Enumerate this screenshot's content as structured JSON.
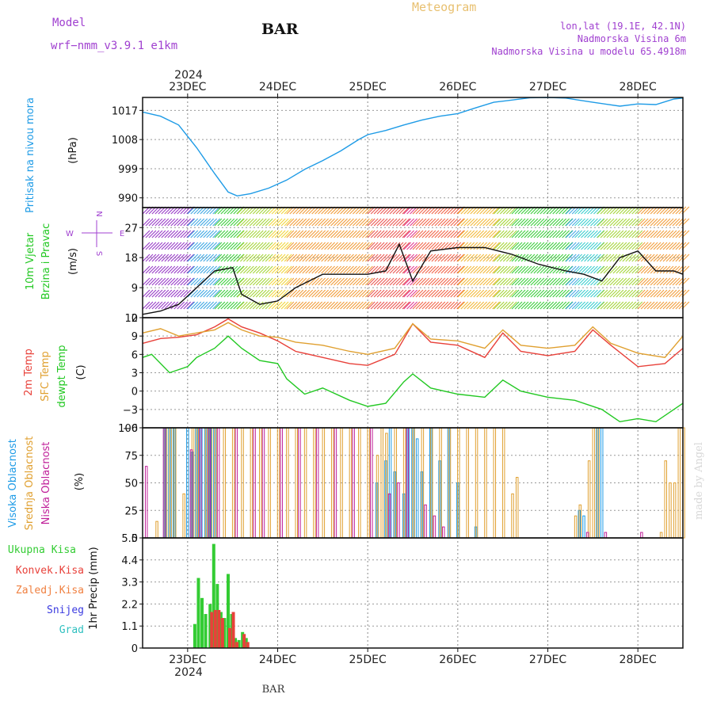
{
  "header": {
    "title": "BAR",
    "model_label": "Model",
    "model_name": "wrf−nmm_v3.9.1  e1km",
    "meteogram": "Meteogram",
    "lonlat": "lon,lat (19.1E, 42.1N)",
    "elevation": "Nadmorska Visina 6m",
    "model_elevation": "Nadmorska Visina u modelu 65.4918m",
    "footer": "BAR",
    "credit": "made by Angel",
    "year": "2024"
  },
  "time_axis": {
    "ticks": [
      "23DEC",
      "24DEC",
      "25DEC",
      "26DEC",
      "27DEC",
      "28DEC"
    ],
    "range_days": [
      22.5,
      28.5
    ]
  },
  "colors": {
    "pressure": "#1e9be6",
    "temp2m": "#e8413a",
    "sfc_temp": "#e0a030",
    "dewpt": "#22c822",
    "high_cloud": "#1e9be6",
    "mid_cloud": "#e0a030",
    "low_cloud": "#c0209a",
    "total_precip": "#33cc33",
    "conv_precip": "#e8413a",
    "frz_precip": "#f08040",
    "snow": "#3a3ae0",
    "graupel": "#30c0c0",
    "header_purple": "#a040d0",
    "meteogram_gold": "#e8c070"
  },
  "chart_data": [
    {
      "type": "line",
      "panel": "pressure",
      "ylabel_main": "Pritisak na nivou mora",
      "unit": "(hPa)",
      "yticks": [
        "1017",
        "1008",
        "999",
        "990"
      ],
      "ylim": [
        987,
        1021
      ],
      "series": [
        {
          "key": "pressure",
          "x": [
            22.5,
            22.7,
            22.9,
            23.1,
            23.3,
            23.45,
            23.55,
            23.7,
            23.9,
            24.1,
            24.3,
            24.5,
            24.7,
            24.9,
            25.0,
            25.2,
            25.4,
            25.6,
            25.8,
            26.0,
            26.2,
            26.4,
            26.6,
            26.8,
            27.0,
            27.2,
            27.5,
            27.8,
            28.0,
            28.2,
            28.4,
            28.5
          ],
          "values": [
            1016.5,
            1015.2,
            1012.5,
            1005.5,
            997.5,
            991.8,
            990.6,
            991.3,
            993.0,
            995.5,
            998.8,
            1001.5,
            1004.5,
            1008.0,
            1009.5,
            1010.8,
            1012.5,
            1014.0,
            1015.2,
            1016.0,
            1017.8,
            1019.5,
            1020.2,
            1020.9,
            1021.0,
            1020.8,
            1019.5,
            1018.3,
            1019.0,
            1018.8,
            1020.5,
            1020.8
          ]
        }
      ]
    },
    {
      "type": "line",
      "panel": "wind",
      "ylabel_main": "10m Vjetar",
      "ylabel_sub": "Brzina i Pravac",
      "unit": "(m/s)",
      "yticks": [
        "27",
        "18",
        "9",
        "0"
      ],
      "ylim": [
        0,
        33
      ],
      "compass": [
        "N",
        "W",
        "E",
        "S"
      ],
      "series": [
        {
          "key": "wind_speed",
          "x": [
            22.5,
            22.7,
            22.9,
            23.1,
            23.3,
            23.5,
            23.6,
            23.8,
            24.0,
            24.2,
            24.5,
            24.8,
            25.0,
            25.2,
            25.35,
            25.5,
            25.7,
            26.0,
            26.3,
            26.6,
            26.9,
            27.2,
            27.4,
            27.6,
            27.8,
            28.0,
            28.2,
            28.4,
            28.5
          ],
          "values": [
            1,
            2,
            4,
            9,
            14,
            15,
            7,
            4,
            5,
            9,
            13,
            13,
            13,
            14,
            22,
            11,
            20,
            21,
            21,
            19,
            16,
            14,
            13,
            11,
            18,
            20,
            14,
            14,
            13
          ]
        }
      ]
    },
    {
      "type": "line",
      "panel": "temperature",
      "ylabel_lines": [
        "2m Temp",
        "SFC Temp",
        "dewpt Temp"
      ],
      "unit": "(C)",
      "yticks": [
        "12",
        "9",
        "6",
        "3",
        "0",
        "−3",
        "−6"
      ],
      "ylim": [
        -6,
        12
      ],
      "series": [
        {
          "key": "temp2m",
          "x": [
            22.5,
            22.7,
            22.9,
            23.1,
            23.3,
            23.45,
            23.6,
            23.8,
            24.0,
            24.2,
            24.5,
            24.8,
            25.0,
            25.3,
            25.5,
            25.7,
            26.0,
            26.3,
            26.5,
            26.7,
            27.0,
            27.3,
            27.5,
            27.7,
            28.0,
            28.3,
            28.5
          ],
          "values": [
            7.8,
            8.6,
            8.8,
            9.2,
            10.5,
            11.8,
            10.5,
            9.5,
            8.2,
            6.5,
            5.5,
            4.5,
            4.2,
            6.0,
            11.0,
            8.0,
            7.5,
            5.5,
            9.5,
            6.5,
            5.8,
            6.5,
            10.0,
            7.5,
            4.0,
            4.5,
            7.0
          ]
        },
        {
          "key": "sfc_temp",
          "x": [
            22.5,
            22.7,
            22.9,
            23.1,
            23.3,
            23.45,
            23.6,
            23.8,
            24.0,
            24.2,
            24.5,
            24.8,
            25.0,
            25.3,
            25.5,
            25.7,
            26.0,
            26.3,
            26.5,
            26.7,
            27.0,
            27.3,
            27.5,
            27.7,
            28.0,
            28.3,
            28.5
          ],
          "values": [
            9.5,
            10.2,
            9.0,
            9.5,
            10.0,
            11.2,
            10.0,
            9.0,
            8.8,
            8.0,
            7.5,
            6.5,
            6.0,
            7.0,
            11.0,
            8.5,
            8.2,
            7.0,
            10.0,
            7.5,
            7.0,
            7.5,
            10.5,
            7.8,
            6.2,
            5.5,
            9.0
          ]
        },
        {
          "key": "dewpt",
          "x": [
            22.5,
            22.6,
            22.8,
            23.0,
            23.1,
            23.3,
            23.45,
            23.6,
            23.8,
            24.0,
            24.1,
            24.3,
            24.5,
            24.8,
            25.0,
            25.2,
            25.4,
            25.5,
            25.7,
            26.0,
            26.3,
            26.5,
            26.7,
            27.0,
            27.3,
            27.6,
            27.8,
            28.0,
            28.2,
            28.5
          ],
          "values": [
            5.5,
            6.0,
            3.0,
            4.0,
            5.5,
            7.0,
            9.0,
            7.0,
            5.0,
            4.5,
            2.0,
            -0.5,
            0.5,
            -1.5,
            -2.5,
            -2.0,
            1.5,
            2.8,
            0.5,
            -0.5,
            -1.0,
            1.8,
            0.0,
            -1.0,
            -1.5,
            -3.0,
            -5.0,
            -4.5,
            -5.0,
            -2.0
          ]
        }
      ]
    },
    {
      "type": "bar",
      "panel": "clouds",
      "ylabel_lines": [
        "Visoka Oblacnost",
        "Srednja Oblacnost",
        "Niska Oblacnost"
      ],
      "unit": "(%)",
      "yticks": [
        "100",
        "75",
        "50",
        "25",
        "0"
      ],
      "ylim": [
        0,
        100
      ],
      "series": [
        {
          "key": "high_cloud",
          "x": [
            22.75,
            22.8,
            22.85,
            23.0,
            23.05,
            23.1,
            23.15,
            23.2,
            23.25,
            23.3,
            25.1,
            25.2,
            25.25,
            25.3,
            25.4,
            25.45,
            25.5,
            25.55,
            25.6,
            25.7,
            25.8,
            25.9,
            26.0,
            26.2,
            27.35,
            27.4,
            27.55,
            27.6
          ],
          "values": [
            100,
            100,
            100,
            100,
            78,
            100,
            100,
            100,
            100,
            100,
            50,
            70,
            100,
            60,
            40,
            100,
            100,
            90,
            60,
            100,
            70,
            100,
            50,
            10,
            25,
            20,
            100,
            100
          ]
        },
        {
          "key": "mid_cloud",
          "x": [
            22.65,
            22.75,
            22.8,
            22.85,
            22.95,
            23.05,
            23.1,
            23.2,
            23.25,
            23.3,
            23.4,
            23.5,
            23.6,
            23.7,
            23.8,
            23.9,
            24.0,
            24.1,
            24.2,
            24.3,
            24.4,
            24.5,
            24.6,
            24.7,
            24.8,
            24.9,
            25.0,
            25.1,
            25.15,
            25.2,
            25.3,
            25.4,
            25.5,
            25.6,
            25.7,
            25.8,
            25.9,
            26.0,
            26.1,
            26.2,
            26.3,
            26.4,
            26.5,
            26.6,
            26.65,
            27.3,
            27.35,
            27.45,
            27.5,
            27.55,
            28.25,
            28.3,
            28.35,
            28.4,
            28.45,
            28.5
          ],
          "values": [
            15,
            100,
            100,
            100,
            40,
            100,
            100,
            100,
            100,
            100,
            100,
            100,
            100,
            100,
            100,
            100,
            100,
            100,
            100,
            100,
            100,
            100,
            100,
            100,
            100,
            100,
            100,
            75,
            100,
            95,
            100,
            100,
            100,
            100,
            100,
            100,
            100,
            100,
            100,
            100,
            100,
            100,
            100,
            40,
            55,
            20,
            30,
            70,
            100,
            100,
            5,
            70,
            50,
            50,
            100,
            100
          ]
        },
        {
          "key": "low_cloud",
          "x": [
            22.55,
            22.75,
            23.05,
            23.15,
            23.25,
            23.35,
            23.55,
            23.75,
            23.85,
            24.05,
            24.25,
            24.45,
            24.65,
            24.85,
            25.05,
            25.25,
            25.35,
            25.45,
            25.65,
            25.75,
            25.85,
            27.45,
            27.65,
            28.05
          ],
          "values": [
            65,
            100,
            80,
            100,
            100,
            100,
            100,
            100,
            100,
            100,
            100,
            100,
            100,
            100,
            100,
            40,
            50,
            100,
            30,
            20,
            10,
            5,
            5,
            5
          ]
        }
      ]
    },
    {
      "type": "bar",
      "panel": "precipitation",
      "legend": [
        "Ukupna Kisa",
        "Konvek.Kisa",
        "Zaledj.Kisa",
        "Snijeg",
        "Grad"
      ],
      "ylabel_main": "1hr Precip",
      "unit": "(mm)",
      "yticks": [
        "5.5",
        "4.4",
        "3.3",
        "2.2",
        "1.1",
        "0"
      ],
      "ylim": [
        0,
        5.5
      ],
      "series": [
        {
          "key": "total_precip",
          "x": [
            23.08,
            23.12,
            23.16,
            23.2,
            23.25,
            23.29,
            23.33,
            23.37,
            23.41,
            23.45,
            23.49,
            23.53,
            23.57,
            23.61,
            23.65
          ],
          "values": [
            1.2,
            3.5,
            2.5,
            1.7,
            2.2,
            5.2,
            3.2,
            1.8,
            1.5,
            3.7,
            1.7,
            0.5,
            0.4,
            0.8,
            0.5
          ]
        },
        {
          "key": "conv_precip",
          "x": [
            23.25,
            23.29,
            23.33,
            23.37,
            23.45,
            23.49,
            23.53,
            23.61,
            23.65
          ],
          "values": [
            1.8,
            1.9,
            1.9,
            1.5,
            1.0,
            1.8,
            0.3,
            0.7,
            0.3
          ]
        }
      ]
    }
  ]
}
